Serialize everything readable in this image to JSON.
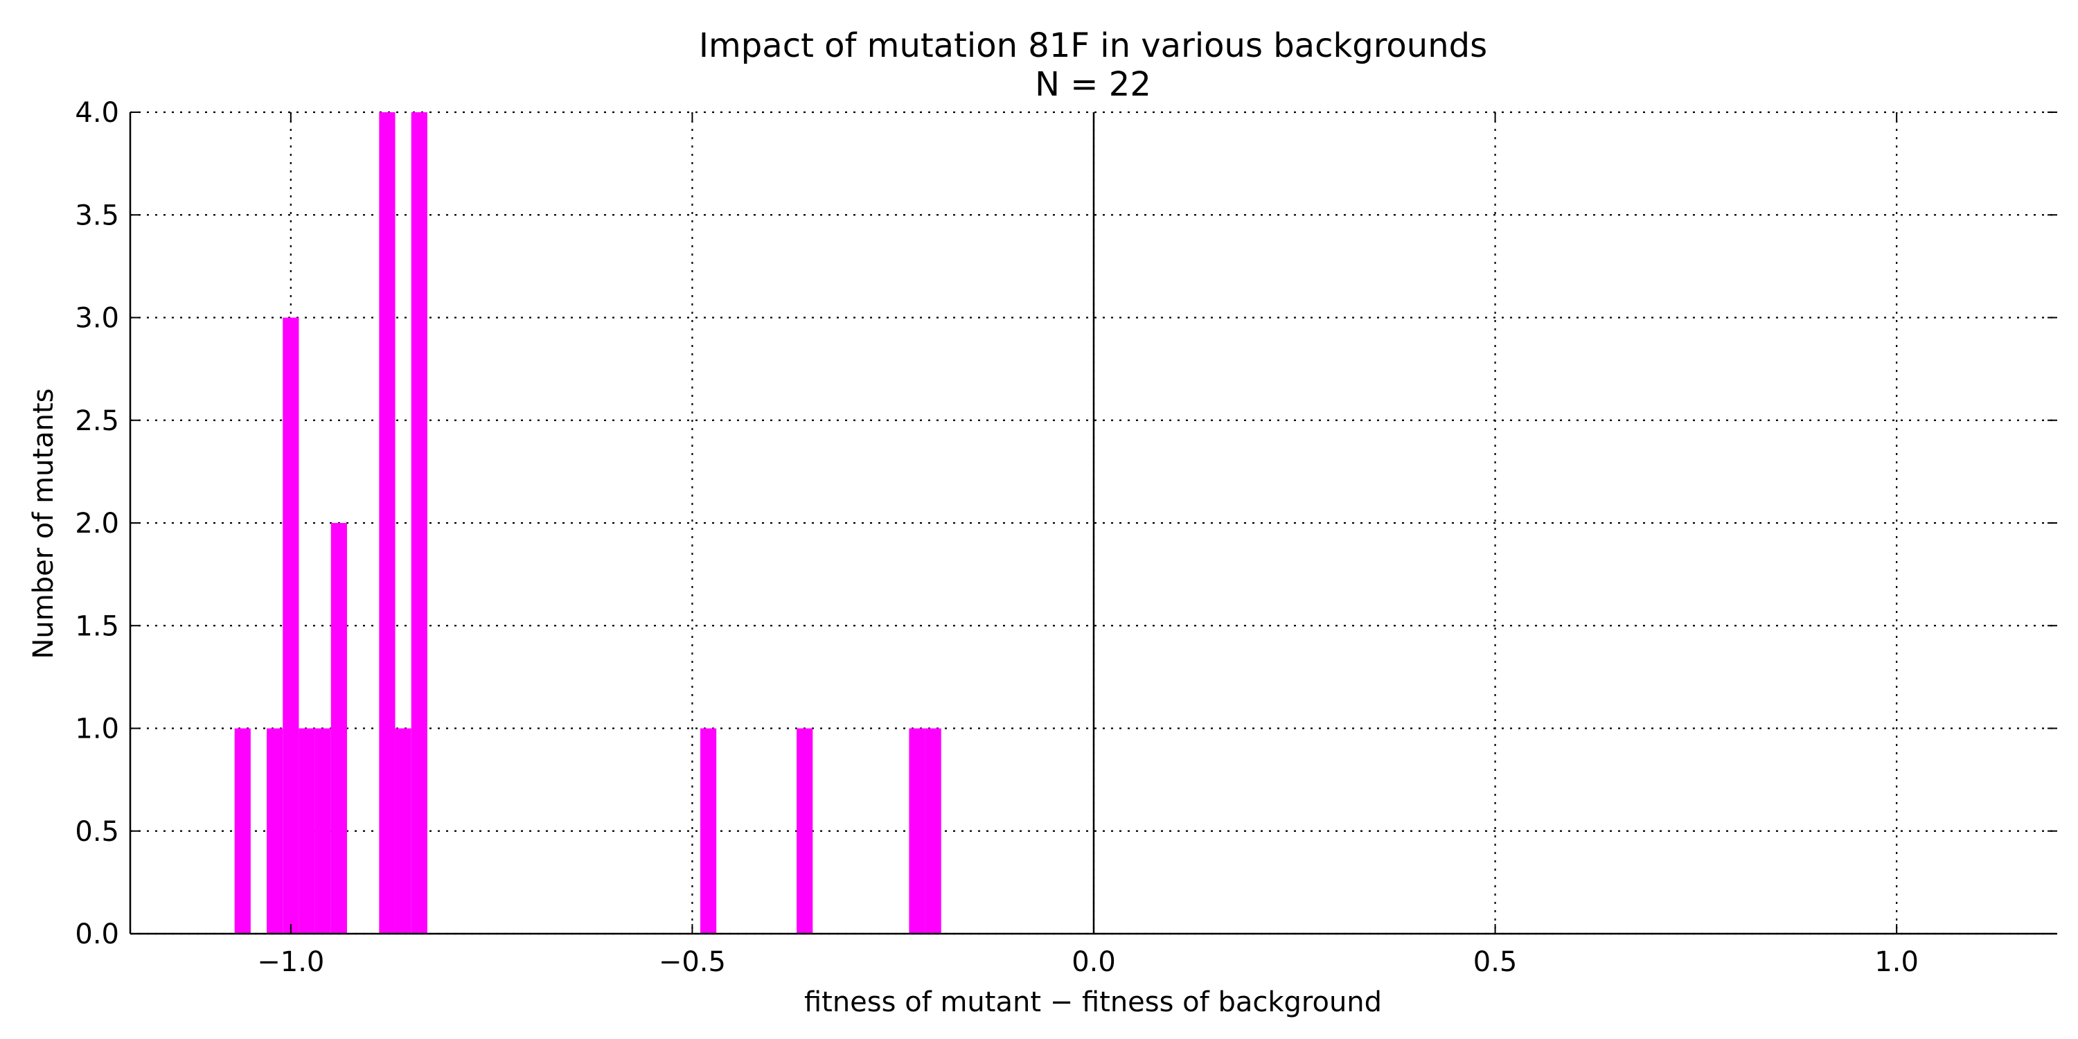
{
  "chart_data": {
    "type": "bar",
    "title": "Impact of mutation 81F in various backgrounds",
    "subtitle": "N = 22",
    "xlabel": "fitness of mutant  −  fitness of background",
    "ylabel": "Number of mutants",
    "xlim": [
      -1.2,
      1.2
    ],
    "ylim": [
      0,
      4
    ],
    "xticks": [
      -1.0,
      -0.5,
      0.0,
      0.5,
      1.0
    ],
    "xtick_labels": [
      "−1.0",
      "−0.5",
      "0.0",
      "0.5",
      "1.0"
    ],
    "yticks": [
      0,
      0.5,
      1,
      1.5,
      2,
      2.5,
      3,
      3.5,
      4
    ],
    "ytick_labels": [
      "0.0",
      "0.5",
      "1.0",
      "1.5",
      "2.0",
      "2.5",
      "3.0",
      "3.5",
      "4.0"
    ],
    "grid": true,
    "reference_line_x": 0.0,
    "bar_color": "#ff00ff",
    "bin_width": 0.02,
    "bins": [
      {
        "x": -1.06,
        "count": 1
      },
      {
        "x": -1.02,
        "count": 1
      },
      {
        "x": -1.0,
        "count": 3
      },
      {
        "x": -0.98,
        "count": 1
      },
      {
        "x": -0.96,
        "count": 1
      },
      {
        "x": -0.94,
        "count": 2
      },
      {
        "x": -0.88,
        "count": 4
      },
      {
        "x": -0.86,
        "count": 1
      },
      {
        "x": -0.84,
        "count": 4
      },
      {
        "x": -0.48,
        "count": 1
      },
      {
        "x": -0.36,
        "count": 1
      },
      {
        "x": -0.22,
        "count": 1
      },
      {
        "x": -0.2,
        "count": 1
      }
    ]
  }
}
